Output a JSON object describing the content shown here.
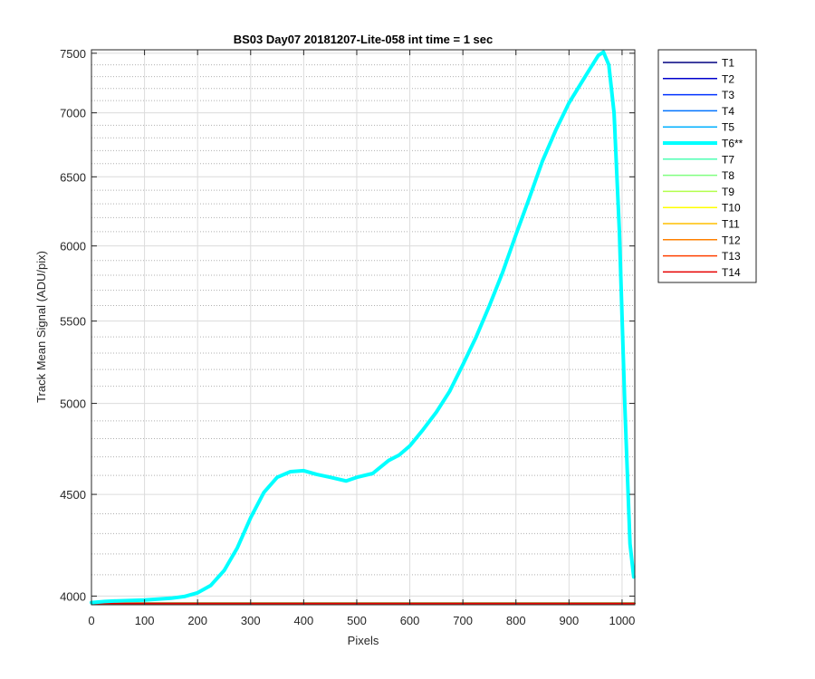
{
  "chart_data": {
    "type": "line",
    "title": "BS03 Day07 20181207-Lite-058 int time = 1 sec",
    "xlabel": "Pixels",
    "ylabel": "Track Mean Signal (ADU/pix)",
    "xlim": [
      0,
      1024
    ],
    "ylim": [
      3960,
      7530
    ],
    "y_scale": "log",
    "grid": "major-and-minor",
    "legend_position": "outside-right",
    "x_ticks": [
      0,
      100,
      200,
      300,
      400,
      500,
      600,
      700,
      800,
      900,
      1000
    ],
    "x_tick_labels": [
      "0",
      "100",
      "200",
      "300",
      "400",
      "500",
      "600",
      "700",
      "800",
      "900",
      "1000"
    ],
    "y_ticks": [
      4000,
      4500,
      5000,
      5500,
      6000,
      6500,
      7000,
      7500
    ],
    "y_tick_labels": [
      "4000",
      "4500",
      "5000",
      "5500",
      "6000",
      "6500",
      "7000",
      "7500"
    ],
    "series": [
      {
        "name": "T1",
        "color": "#000080",
        "x": [
          0,
          1024
        ],
        "y": [
          3968,
          3968
        ]
      },
      {
        "name": "T2",
        "color": "#0000cc",
        "x": [
          0,
          1024
        ],
        "y": [
          3968,
          3968
        ]
      },
      {
        "name": "T3",
        "color": "#0033ff",
        "x": [
          0,
          1024
        ],
        "y": [
          3968,
          3968
        ]
      },
      {
        "name": "T4",
        "color": "#0073ff",
        "x": [
          0,
          1024
        ],
        "y": [
          3968,
          3968
        ]
      },
      {
        "name": "T5",
        "color": "#00b0ff",
        "x": [
          0,
          1024
        ],
        "y": [
          3968,
          3968
        ]
      },
      {
        "name": "T6**",
        "color": "#00ffff",
        "highlight": true,
        "x": [
          0,
          25,
          50,
          100,
          150,
          175,
          200,
          225,
          250,
          275,
          300,
          325,
          350,
          375,
          400,
          425,
          450,
          480,
          500,
          530,
          560,
          580,
          600,
          625,
          650,
          675,
          700,
          725,
          750,
          775,
          800,
          825,
          850,
          875,
          900,
          925,
          940,
          955,
          965,
          975,
          985,
          995,
          1005,
          1015,
          1022
        ],
        "y": [
          3970,
          3975,
          3978,
          3982,
          3990,
          3998,
          4015,
          4050,
          4120,
          4230,
          4380,
          4510,
          4590,
          4620,
          4625,
          4605,
          4590,
          4570,
          4590,
          4610,
          4680,
          4710,
          4760,
          4850,
          4950,
          5070,
          5230,
          5400,
          5600,
          5820,
          6080,
          6340,
          6620,
          6860,
          7080,
          7260,
          7370,
          7480,
          7510,
          7400,
          7000,
          6100,
          5000,
          4250,
          4090
        ]
      },
      {
        "name": "T7",
        "color": "#4dffb3",
        "x": [
          0,
          1024
        ],
        "y": [
          3968,
          3968
        ]
      },
      {
        "name": "T8",
        "color": "#80ff80",
        "x": [
          0,
          1024
        ],
        "y": [
          3968,
          3968
        ]
      },
      {
        "name": "T9",
        "color": "#b3ff4d",
        "x": [
          0,
          1024
        ],
        "y": [
          3968,
          3968
        ]
      },
      {
        "name": "T10",
        "color": "#ffff00",
        "x": [
          0,
          1024
        ],
        "y": [
          3967,
          3967
        ]
      },
      {
        "name": "T11",
        "color": "#ffbf00",
        "x": [
          0,
          1024
        ],
        "y": [
          3967,
          3967
        ]
      },
      {
        "name": "T12",
        "color": "#ff8000",
        "x": [
          0,
          1024
        ],
        "y": [
          3967,
          3967
        ]
      },
      {
        "name": "T13",
        "color": "#ff4000",
        "x": [
          0,
          1024
        ],
        "y": [
          3966,
          3966
        ]
      },
      {
        "name": "T14",
        "color": "#e60000",
        "x": [
          0,
          1024
        ],
        "y": [
          3966,
          3966
        ]
      }
    ]
  }
}
